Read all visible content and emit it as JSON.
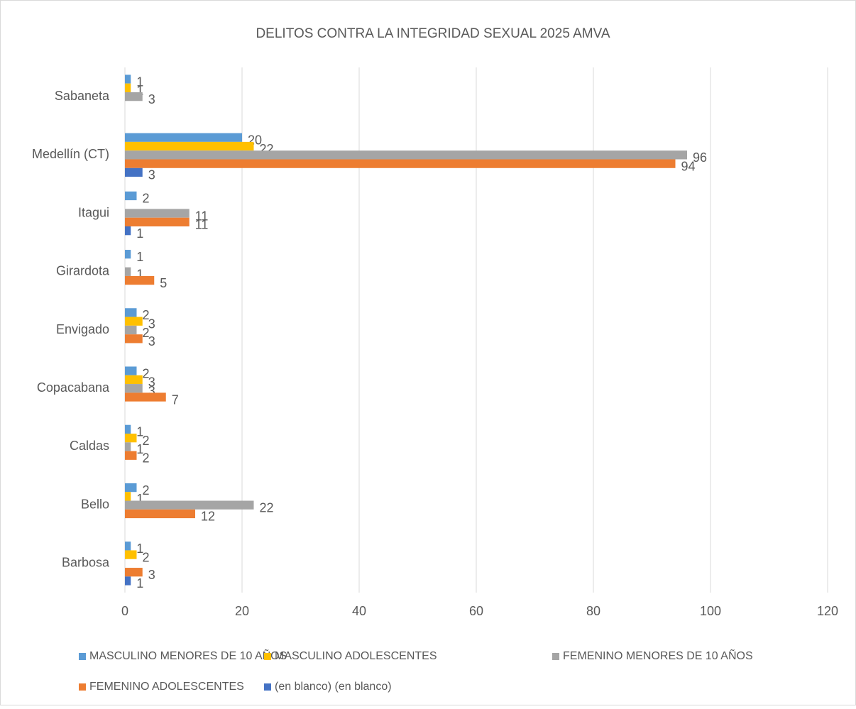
{
  "chart_data": {
    "type": "bar",
    "orientation": "horizontal",
    "title": "DELITOS CONTRA LA INTEGRIDAD SEXUAL 2025 AMVA",
    "categories": [
      "Barbosa",
      "Bello",
      "Caldas",
      "Copacabana",
      "Envigado",
      "Girardota",
      "Itagui",
      "Medellín (CT)",
      "Sabaneta"
    ],
    "series": [
      {
        "name": "MASCULINO MENORES DE 10 AÑOS",
        "color": "#5b9bd5",
        "values": [
          1,
          2,
          1,
          2,
          2,
          1,
          2,
          20,
          1
        ]
      },
      {
        "name": "MASCULINO ADOLESCENTES",
        "color": "#ffc000",
        "values": [
          2,
          1,
          2,
          3,
          3,
          null,
          null,
          22,
          1
        ]
      },
      {
        "name": "FEMENINO MENORES DE 10 AÑOS",
        "color": "#a5a5a5",
        "values": [
          null,
          22,
          1,
          3,
          2,
          1,
          11,
          96,
          3
        ]
      },
      {
        "name": "FEMENINO ADOLESCENTES",
        "color": "#ed7d31",
        "values": [
          3,
          12,
          2,
          7,
          3,
          5,
          11,
          94,
          null
        ]
      },
      {
        "name": "(en blanco) (en blanco)",
        "color": "#4472c4",
        "values": [
          1,
          null,
          null,
          null,
          null,
          null,
          1,
          3,
          null
        ]
      }
    ],
    "xlim": [
      0,
      120
    ],
    "xticks": [
      0,
      20,
      40,
      60,
      80,
      100,
      120
    ],
    "grid": true,
    "legend": "bottom",
    "data_labels": true
  }
}
